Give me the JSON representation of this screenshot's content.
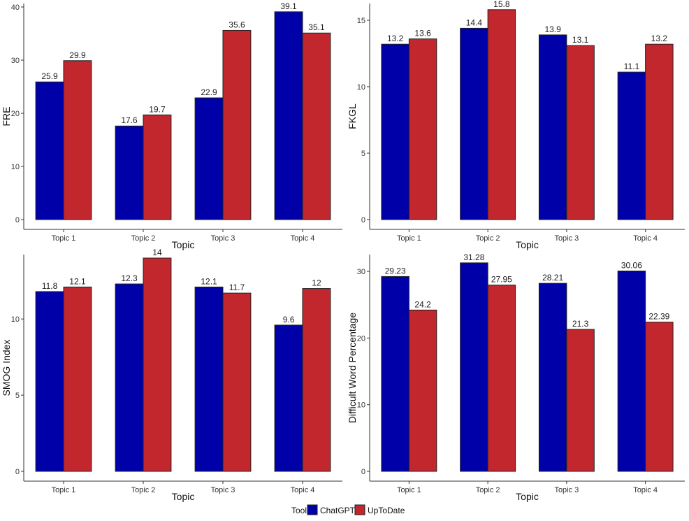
{
  "legend": {
    "title": "Tool",
    "entries": [
      {
        "name": "ChatGPT",
        "color": "#0000A8"
      },
      {
        "name": "UpToDate",
        "color": "#C1272D"
      }
    ]
  },
  "chart_data": [
    {
      "type": "bar",
      "title": "",
      "xlabel": "Topic",
      "ylabel": "FRE",
      "categories": [
        "Topic 1",
        "Topic 2",
        "Topic 3",
        "Topic 4"
      ],
      "ylim": [
        0,
        40
      ],
      "yticks": [
        0,
        10,
        20,
        30,
        40
      ],
      "series": [
        {
          "name": "ChatGPT",
          "values": [
            25.9,
            17.6,
            22.9,
            39.1
          ],
          "labels": [
            "25.9",
            "17.6",
            "22.9",
            "39.1"
          ]
        },
        {
          "name": "UpToDate",
          "values": [
            29.9,
            19.7,
            35.6,
            35.1
          ],
          "labels": [
            "29.9",
            "19.7",
            "35.6",
            "35.1"
          ]
        }
      ]
    },
    {
      "type": "bar",
      "title": "",
      "xlabel": "Topic",
      "ylabel": "FKGL",
      "categories": [
        "Topic 1",
        "Topic 2",
        "Topic 3",
        "Topic 4"
      ],
      "ylim": [
        0,
        16
      ],
      "yticks": [
        0,
        5,
        10,
        15
      ],
      "series": [
        {
          "name": "ChatGPT",
          "values": [
            13.2,
            14.4,
            13.9,
            11.1
          ],
          "labels": [
            "13.2",
            "14.4",
            "13.9",
            "11.1"
          ]
        },
        {
          "name": "UpToDate",
          "values": [
            13.6,
            15.8,
            13.1,
            13.2
          ],
          "labels": [
            "13.6",
            "15.8",
            "13.1",
            "13.2"
          ]
        }
      ]
    },
    {
      "type": "bar",
      "title": "",
      "xlabel": "Topic",
      "ylabel": "SMOG Index",
      "categories": [
        "Topic 1",
        "Topic 2",
        "Topic 3",
        "Topic 4"
      ],
      "ylim": [
        0,
        14
      ],
      "yticks": [
        0,
        5,
        10
      ],
      "series": [
        {
          "name": "ChatGPT",
          "values": [
            11.8,
            12.3,
            12.1,
            9.6
          ],
          "labels": [
            "11.8",
            "12.3",
            "12.1",
            "9.6"
          ]
        },
        {
          "name": "UpToDate",
          "values": [
            12.1,
            14,
            11.7,
            12
          ],
          "labels": [
            "12.1",
            "14",
            "11.7",
            "12"
          ]
        }
      ]
    },
    {
      "type": "bar",
      "title": "",
      "xlabel": "Topic",
      "ylabel": "Difficult Word Percentage",
      "categories": [
        "Topic 1",
        "Topic 2",
        "Topic 3",
        "Topic 4"
      ],
      "ylim": [
        0,
        32
      ],
      "yticks": [
        0,
        10,
        20,
        30
      ],
      "series": [
        {
          "name": "ChatGPT",
          "values": [
            29.23,
            31.28,
            28.21,
            30.06
          ],
          "labels": [
            "29.23",
            "31.28",
            "28.21",
            "30.06"
          ]
        },
        {
          "name": "UpToDate",
          "values": [
            24.2,
            27.95,
            21.3,
            22.39
          ],
          "labels": [
            "24.2",
            "27.95",
            "21.3",
            "22.39"
          ]
        }
      ]
    }
  ]
}
